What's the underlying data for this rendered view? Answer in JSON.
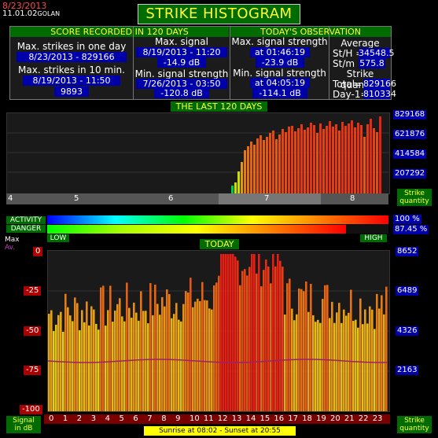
{
  "header": {
    "date": "8/23/2013",
    "version": "11.01.02",
    "station": "GOLAN",
    "title": "STRIKE HISTOGRAM"
  },
  "score_panel": {
    "title": "SCORE RECORDED IN 120 DAYS",
    "max_day_label": "Max. strikes in one day",
    "max_day_value": "8/23/2013 - 829166",
    "max_10min_label": "Max. strikes in 10 min.",
    "max_10min_date": "8/19/2013 - 11:50",
    "max_10min_value": "9893",
    "max_signal_label": "Max. signal strength",
    "max_signal_date": "8/19/2013 - 11:20",
    "max_signal_value": "-14.9 dB",
    "min_signal_label": "Min. signal strength",
    "min_signal_date": "7/26/2013 - 03:50",
    "min_signal_value": "-120.8 dB"
  },
  "today_panel": {
    "title": "TODAY'S OBSERVATION",
    "max_signal_label": "Max. signal strength",
    "max_signal_time": "at 01:46:19",
    "max_signal_value": "-23.9 dB",
    "min_signal_label": "Min. signal strength",
    "min_signal_time": "at 04:05:19",
    "min_signal_value": "-114.1 dB",
    "average_label": "Average",
    "sth_label": "St/H =",
    "sth_value": "34548.5",
    "stm_label": "St/m =",
    "stm_value": "575.8",
    "quantity_label": "Strike quantity",
    "total_label": "Total",
    "total_eq": "=",
    "total_value": "829166",
    "day1_label": "Day-1=",
    "day1_value": "810334"
  },
  "last120": {
    "title": "THE LAST 120 DAYS",
    "y_labels": [
      "829168",
      "621876",
      "414584",
      "207292"
    ],
    "x_labels": [
      "4",
      "5",
      "6",
      "7",
      "8"
    ],
    "side_label_1": "Strike",
    "side_label_2": "quantity"
  },
  "activity": {
    "activity_label": "ACTIVITY",
    "danger_label": "DANGER",
    "activity_pct": "100 %",
    "danger_pct": "87.45 %",
    "activity_level": 1.0,
    "danger_level": 0.8745,
    "low_label": "LOW",
    "high_label": "HIGH"
  },
  "today_chart": {
    "title": "TODAY",
    "max_label": "Max",
    "av_label": "Av.",
    "db_labels": [
      "0",
      "-25",
      "-50",
      "-75",
      "-100"
    ],
    "y_labels_right": [
      "8652",
      "6489",
      "4326",
      "2163"
    ],
    "hours": [
      "0",
      "1",
      "2",
      "3",
      "4",
      "5",
      "6",
      "7",
      "8",
      "9",
      "10",
      "11",
      "12",
      "13",
      "14",
      "15",
      "16",
      "17",
      "18",
      "19",
      "20",
      "21",
      "22",
      "23"
    ],
    "signal_label_1": "Signal",
    "signal_label_2": "in dB",
    "strike_label_1": "Strike",
    "strike_label_2": "quantity",
    "sunrise_text": "Sunrise at 08:02  -  Sunset at 20:55"
  },
  "colors": {
    "green_header": "#006b00",
    "yellow_text": "#ffff33",
    "value_bg": "#0000aa",
    "red_date": "#ff4a4a"
  }
}
